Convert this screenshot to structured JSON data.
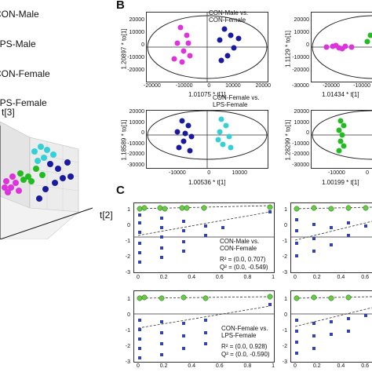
{
  "legend": {
    "items": [
      {
        "label": "CON-Male",
        "color": "#dd33dd"
      },
      {
        "label": "LPS-Male",
        "color": "#22bb22"
      },
      {
        "label": "CON-Female",
        "color": "#1a1aa0"
      },
      {
        "label": "LPS-Female",
        "color": "#33d0d8"
      }
    ]
  },
  "panel_a": {
    "axes": {
      "t3": "t[3]",
      "t2": "t[2]"
    }
  },
  "panel_b": {
    "letter": "B",
    "plots": [
      {
        "title_line1": "CON-Male vs.",
        "title_line2": "CON-Female",
        "ylabel": "1.20897 * to[1]",
        "xlabel": "1.01075 * t[1]",
        "yticks": [
          "20000",
          "10000",
          "0",
          "-10000",
          "-20000"
        ],
        "xticks": [
          "-20000",
          "-10000",
          "0",
          "10000",
          "20000"
        ]
      },
      {
        "title_line1": "",
        "title_line2": "",
        "ylabel": "1.1129 * to[1]",
        "xlabel": "1.01434 * t[1]",
        "yticks": [
          "20000",
          "10000",
          "0",
          "-10000",
          "-20000"
        ],
        "xticks": [
          "-30000",
          "-20000",
          "-10000"
        ]
      },
      {
        "title_line1": "CON-Female vs.",
        "title_line2": "LPS-Female",
        "ylabel": "1.18589 * to[1]",
        "xlabel": "1.00536 * t[1]",
        "yticks": [
          "20000",
          "10000",
          "0",
          "-10000",
          "-20000",
          "-30000"
        ],
        "xticks": [
          "-10000",
          "0",
          "10000"
        ]
      },
      {
        "title_line1": "",
        "title_line2": "",
        "ylabel": "1.28299 * to[1]",
        "xlabel": "1.00199 * t[1]",
        "yticks": [
          "20000",
          "10000",
          "0",
          "-10000",
          "-20000",
          "-30000"
        ],
        "xticks": [
          "-10000",
          "0"
        ]
      }
    ]
  },
  "panel_c": {
    "letter": "C",
    "plots": [
      {
        "label_line1": "CON-Male vs.",
        "label_line2": "CON-Female",
        "r2": "R² = (0.0, 0.707)",
        "q2": "Q² = (0.0, -0.549)",
        "yticks": [
          "1",
          "0",
          "-1",
          "-2",
          "-3"
        ],
        "xticks": [
          "0",
          "0.2",
          "0.4",
          "0.6",
          "0.8",
          "1"
        ]
      },
      {
        "label_line1": "",
        "label_line2": "",
        "r2": "",
        "q2": "",
        "yticks": [
          "1",
          "0",
          "-1",
          "-2",
          "-3"
        ],
        "xticks": [
          "0",
          "0.2",
          "0.4",
          "0.6"
        ]
      },
      {
        "label_line1": "CON-Female vs.",
        "label_line2": "LPS-Female",
        "r2": "R² = (0.0, 0.928)",
        "q2": "Q² = (0.0, -0.590)",
        "yticks": [
          "1",
          "0",
          "-1",
          "-2",
          "-3"
        ],
        "xticks": [
          "0",
          "0.2",
          "0.4",
          "0.6",
          "0.8",
          "1"
        ]
      },
      {
        "label_line1": "",
        "label_line2": "",
        "r2": "",
        "q2": "",
        "yticks": [
          "1",
          "0",
          "-1",
          "-2",
          "-3"
        ],
        "xticks": [
          "0",
          "0.2",
          "0.4",
          "0.6"
        ]
      }
    ]
  }
}
